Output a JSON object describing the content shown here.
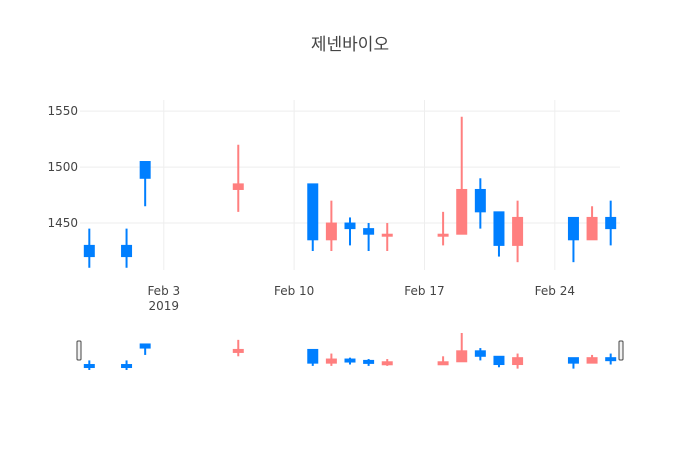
{
  "chart_data": {
    "type": "candlestick",
    "title": "제넨바이오",
    "xlabel": "",
    "ylabel": "",
    "ylim": [
      1408,
      1560
    ],
    "y_ticks": [
      1450,
      1500,
      1550
    ],
    "x_ticks": [
      {
        "date": "2019-02-03",
        "label": "Feb 3",
        "sublabel": "2019"
      },
      {
        "date": "2019-02-10",
        "label": "Feb 10",
        "sublabel": ""
      },
      {
        "date": "2019-02-17",
        "label": "Feb 17",
        "sublabel": ""
      },
      {
        "date": "2019-02-24",
        "label": "Feb 24",
        "sublabel": ""
      }
    ],
    "x_range": [
      "2019-01-29T12:00",
      "2019-02-27T12:00"
    ],
    "grid": true,
    "increasing_color": "#ff7f7f",
    "decreasing_color": "#007fff",
    "candles": [
      {
        "date": "2019-01-30",
        "open": 1430,
        "high": 1445,
        "low": 1410,
        "close": 1420
      },
      {
        "date": "2019-02-01",
        "open": 1430,
        "high": 1445,
        "low": 1410,
        "close": 1420
      },
      {
        "date": "2019-02-02",
        "open": 1505,
        "high": 1505,
        "low": 1465,
        "close": 1490
      },
      {
        "date": "2019-02-07",
        "open": 1480,
        "high": 1520,
        "low": 1460,
        "close": 1485
      },
      {
        "date": "2019-02-11",
        "open": 1485,
        "high": 1485,
        "low": 1425,
        "close": 1435
      },
      {
        "date": "2019-02-12",
        "open": 1435,
        "high": 1470,
        "low": 1425,
        "close": 1450
      },
      {
        "date": "2019-02-13",
        "open": 1450,
        "high": 1455,
        "low": 1430,
        "close": 1445
      },
      {
        "date": "2019-02-14",
        "open": 1445,
        "high": 1450,
        "low": 1425,
        "close": 1440
      },
      {
        "date": "2019-02-15",
        "open": 1440,
        "high": 1450,
        "low": 1425,
        "close": 1440
      },
      {
        "date": "2019-02-18",
        "open": 1440,
        "high": 1460,
        "low": 1430,
        "close": 1440
      },
      {
        "date": "2019-02-19",
        "open": 1440,
        "high": 1545,
        "low": 1440,
        "close": 1480
      },
      {
        "date": "2019-02-20",
        "open": 1480,
        "high": 1490,
        "low": 1445,
        "close": 1460
      },
      {
        "date": "2019-02-21",
        "open": 1460,
        "high": 1460,
        "low": 1420,
        "close": 1430
      },
      {
        "date": "2019-02-22",
        "open": 1430,
        "high": 1470,
        "low": 1415,
        "close": 1455
      },
      {
        "date": "2019-02-25",
        "open": 1455,
        "high": 1455,
        "low": 1415,
        "close": 1435
      },
      {
        "date": "2019-02-26",
        "open": 1435,
        "high": 1465,
        "low": 1435,
        "close": 1455
      },
      {
        "date": "2019-02-27",
        "open": 1455,
        "high": 1470,
        "low": 1430,
        "close": 1445
      }
    ]
  }
}
